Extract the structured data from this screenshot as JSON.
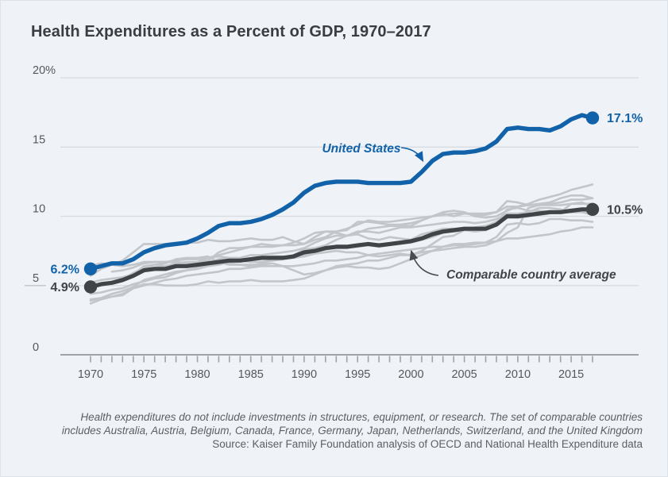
{
  "title": "Health Expenditures as a Percent of GDP, 1970–2017",
  "notes": {
    "line1": "Health expenditures do not include investments in structures, equipment, or research. The set of comparable countries",
    "line2": "includes Australia, Austria, Belgium, Canada, France, Germany, Japan, Netherlands, Switzerland, and the United Kingdom",
    "source": "Source: Kaiser Family Foundation analysis of OECD and National Health Expenditure data"
  },
  "colors": {
    "background": "#eff3f7",
    "us_blue": "#1162a8",
    "average_dark": "#414447",
    "country_gray": "#c2c6ca",
    "gridline": "#d8dce0",
    "axis": "#9da3a8"
  },
  "chart_data": {
    "type": "line",
    "title": "Health Expenditures as a Percent of GDP, 1970–2017",
    "x_start": 1970,
    "x_end": 2017,
    "ylim": [
      0,
      20
    ],
    "grid": "horizontal",
    "y_ticks": [
      {
        "value": 20,
        "label": "20%"
      },
      {
        "value": 15,
        "label": "15"
      },
      {
        "value": 10,
        "label": "10"
      },
      {
        "value": 5,
        "label": "5"
      },
      {
        "value": 0,
        "label": "0"
      }
    ],
    "x_labels": [
      "1970",
      "1975",
      "1980",
      "1985",
      "1990",
      "1995",
      "2000",
      "2005",
      "2010",
      "2015"
    ],
    "annotations": {
      "us_label": "United States",
      "avg_label": "Comparable country average"
    },
    "series": {
      "united_states": {
        "label": "United States",
        "color": "#1162a8",
        "start_label": "6.2%",
        "end_label": "17.1%",
        "values": [
          6.2,
          6.4,
          6.6,
          6.6,
          6.9,
          7.4,
          7.7,
          7.9,
          8.0,
          8.1,
          8.4,
          8.8,
          9.3,
          9.5,
          9.5,
          9.6,
          9.8,
          10.1,
          10.5,
          11.0,
          11.7,
          12.2,
          12.4,
          12.5,
          12.5,
          12.5,
          12.4,
          12.4,
          12.4,
          12.4,
          12.5,
          13.2,
          14.0,
          14.5,
          14.6,
          14.6,
          14.7,
          14.9,
          15.4,
          16.3,
          16.4,
          16.3,
          16.3,
          16.2,
          16.5,
          17.0,
          17.3,
          17.1
        ]
      },
      "comparable_average": {
        "label": "Comparable country average",
        "color": "#414447",
        "start_label": "4.9%",
        "end_label": "10.5%",
        "values": [
          4.9,
          5.1,
          5.2,
          5.4,
          5.7,
          6.1,
          6.2,
          6.2,
          6.4,
          6.4,
          6.5,
          6.6,
          6.7,
          6.8,
          6.8,
          6.9,
          7.0,
          7.0,
          7.0,
          7.1,
          7.4,
          7.5,
          7.7,
          7.8,
          7.8,
          7.9,
          8.0,
          7.9,
          8.0,
          8.1,
          8.2,
          8.4,
          8.7,
          8.9,
          9.0,
          9.1,
          9.1,
          9.1,
          9.4,
          10.0,
          10.0,
          10.1,
          10.2,
          10.3,
          10.3,
          10.4,
          10.5,
          10.5
        ]
      },
      "countries": [
        {
          "name": "Australia",
          "values": [
            3.7,
            4.0,
            4.2,
            4.4,
            4.8,
            5.0,
            5.2,
            5.4,
            5.5,
            5.7,
            5.8,
            5.9,
            6.0,
            6.2,
            6.2,
            6.3,
            6.4,
            6.4,
            6.4,
            6.4,
            6.5,
            6.6,
            6.8,
            6.8,
            6.9,
            7.0,
            7.2,
            7.3,
            7.4,
            7.5,
            7.6,
            7.7,
            7.8,
            7.8,
            7.9,
            7.9,
            8.0,
            8.1,
            8.2,
            8.4,
            8.4,
            8.5,
            8.6,
            8.7,
            8.9,
            9.0,
            9.2,
            9.2
          ]
        },
        {
          "name": "Austria",
          "values": [
            4.9,
            5.0,
            5.2,
            5.4,
            5.8,
            6.4,
            6.5,
            6.6,
            6.9,
            7.0,
            7.0,
            7.1,
            6.7,
            6.5,
            6.5,
            6.4,
            6.6,
            6.8,
            6.9,
            7.2,
            7.6,
            7.7,
            7.9,
            8.3,
            8.6,
            8.9,
            8.9,
            8.8,
            9.0,
            9.2,
            9.2,
            9.3,
            9.4,
            9.5,
            9.6,
            9.6,
            9.5,
            9.6,
            9.8,
            10.1,
            10.1,
            10.0,
            10.1,
            10.2,
            10.3,
            10.3,
            10.4,
            10.4
          ]
        },
        {
          "name": "Belgium",
          "values": [
            3.9,
            4.1,
            4.4,
            4.6,
            4.9,
            5.4,
            5.6,
            5.8,
            6.0,
            6.1,
            6.2,
            6.4,
            6.5,
            6.7,
            6.8,
            6.9,
            7.0,
            7.1,
            7.1,
            7.1,
            7.2,
            7.4,
            7.6,
            7.7,
            7.7,
            7.8,
            7.9,
            7.8,
            7.9,
            8.0,
            8.1,
            8.3,
            8.5,
            8.8,
            8.9,
            9.0,
            8.9,
            9.0,
            9.4,
            9.9,
            9.9,
            10.0,
            10.2,
            10.3,
            10.3,
            10.4,
            10.3,
            10.3
          ]
        },
        {
          "name": "Canada",
          "values": [
            6.4,
            6.6,
            6.5,
            6.4,
            6.5,
            6.7,
            6.7,
            6.7,
            6.7,
            6.6,
            6.7,
            6.8,
            7.4,
            7.7,
            7.7,
            7.8,
            8.0,
            7.9,
            7.9,
            8.1,
            8.4,
            8.8,
            8.9,
            8.8,
            8.6,
            8.7,
            8.4,
            8.3,
            8.5,
            8.4,
            8.3,
            8.7,
            8.9,
            9.1,
            9.1,
            9.1,
            9.2,
            9.3,
            9.5,
            10.5,
            10.6,
            10.4,
            10.4,
            10.3,
            10.3,
            10.9,
            11.0,
            10.7
          ]
        },
        {
          "name": "France",
          "values": [
            5.2,
            5.4,
            5.5,
            5.6,
            5.8,
            6.2,
            6.3,
            6.4,
            6.6,
            6.7,
            6.7,
            7.0,
            7.2,
            7.4,
            7.6,
            7.8,
            7.8,
            7.8,
            7.9,
            7.9,
            8.0,
            8.3,
            8.5,
            8.9,
            9.0,
            9.6,
            9.6,
            9.5,
            9.4,
            9.4,
            9.5,
            9.7,
            10.0,
            10.1,
            10.2,
            10.2,
            10.2,
            10.2,
            10.3,
            10.7,
            10.7,
            10.8,
            10.9,
            11.0,
            11.3,
            11.5,
            11.5,
            11.3
          ]
        },
        {
          "name": "Germany",
          "values": [
            5.7,
            6.2,
            6.5,
            6.8,
            7.4,
            8.0,
            8.0,
            8.0,
            8.1,
            8.1,
            8.1,
            8.3,
            8.2,
            8.2,
            8.3,
            8.4,
            8.3,
            8.3,
            8.5,
            8.2,
            8.0,
            8.5,
            8.9,
            8.9,
            9.1,
            9.4,
            9.7,
            9.6,
            9.6,
            9.7,
            9.8,
            9.9,
            10.0,
            10.2,
            10.0,
            10.2,
            10.1,
            10.1,
            10.3,
            11.1,
            11.0,
            10.8,
            10.8,
            10.9,
            11.0,
            11.2,
            11.2,
            11.3
          ]
        },
        {
          "name": "Japan",
          "values": [
            4.4,
            4.5,
            4.7,
            4.8,
            5.1,
            5.3,
            5.5,
            5.6,
            5.9,
            6.1,
            6.3,
            6.5,
            6.6,
            6.6,
            6.5,
            6.5,
            6.5,
            6.6,
            6.4,
            6.1,
            5.8,
            5.9,
            6.1,
            6.4,
            6.5,
            6.6,
            6.8,
            6.8,
            7.0,
            7.2,
            7.2,
            7.4,
            7.5,
            7.6,
            7.7,
            7.8,
            7.8,
            7.9,
            8.2,
            8.8,
            9.2,
            10.6,
            10.8,
            10.8,
            10.8,
            10.9,
            10.9,
            10.9
          ]
        },
        {
          "name": "Netherlands",
          "values": [
            null,
            null,
            6.0,
            6.1,
            6.3,
            6.6,
            6.7,
            6.7,
            6.8,
            6.9,
            6.9,
            7.0,
            7.1,
            7.0,
            6.8,
            6.7,
            6.7,
            6.8,
            6.9,
            7.0,
            7.1,
            7.3,
            7.4,
            7.5,
            7.4,
            7.4,
            7.2,
            7.1,
            7.2,
            7.3,
            7.2,
            7.5,
            8.0,
            8.5,
            8.6,
            9.0,
            9.2,
            9.3,
            9.6,
            10.2,
            10.2,
            10.3,
            10.6,
            10.6,
            10.5,
            10.3,
            10.3,
            10.1
          ]
        },
        {
          "name": "Switzerland",
          "values": [
            4.8,
            5.0,
            5.2,
            5.5,
            5.9,
            6.3,
            6.5,
            6.4,
            6.5,
            6.5,
            6.6,
            6.7,
            6.9,
            7.0,
            7.0,
            7.2,
            7.2,
            7.3,
            7.4,
            7.5,
            7.7,
            8.1,
            8.4,
            8.6,
            8.6,
            8.8,
            9.1,
            9.2,
            9.3,
            9.3,
            9.3,
            9.7,
            10.0,
            10.3,
            10.4,
            10.3,
            10.0,
            9.9,
            10.0,
            10.4,
            10.7,
            10.9,
            11.2,
            11.4,
            11.6,
            11.9,
            12.1,
            12.3
          ]
        },
        {
          "name": "United Kingdom",
          "values": [
            4.0,
            4.1,
            4.2,
            4.3,
            4.8,
            5.1,
            5.1,
            5.0,
            5.0,
            5.0,
            5.1,
            5.3,
            5.2,
            5.3,
            5.3,
            5.4,
            5.3,
            5.3,
            5.3,
            5.4,
            5.5,
            5.8,
            6.1,
            6.3,
            6.4,
            6.3,
            6.3,
            6.2,
            6.3,
            6.6,
            6.9,
            7.2,
            7.5,
            7.8,
            8.0,
            8.0,
            8.1,
            8.1,
            8.5,
            9.4,
            9.5,
            9.4,
            9.5,
            9.8,
            9.8,
            9.7,
            9.7,
            9.6
          ]
        }
      ]
    }
  }
}
